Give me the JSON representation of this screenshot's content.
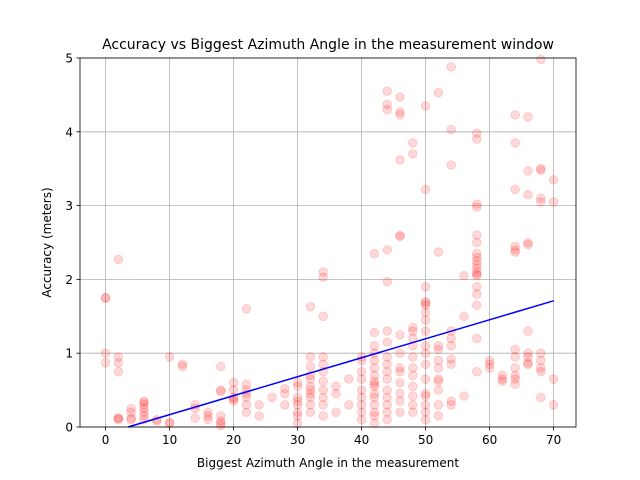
{
  "chart_data": {
    "type": "scatter",
    "title": "Accuracy vs Biggest Azimuth Angle in the measurement window",
    "xlabel": "Biggest Azimuth Angle in the measurement",
    "ylabel": "Accuracy (meters)",
    "xlim": [
      -4,
      73.5
    ],
    "ylim": [
      0,
      5
    ],
    "xticks": [
      0,
      10,
      20,
      30,
      40,
      50,
      60,
      70
    ],
    "yticks": [
      0,
      1,
      2,
      3,
      4,
      5
    ],
    "grid": true,
    "colors": {
      "points": "#ff0000",
      "fit_line": "#0000ff",
      "grid": "#b0b0b0",
      "axes": "#000000"
    },
    "series": [
      {
        "type": "scatter",
        "points": [
          [
            0,
            1.75
          ],
          [
            0,
            1.75
          ],
          [
            0,
            1.0
          ],
          [
            0,
            0.87
          ],
          [
            2,
            2.27
          ],
          [
            2,
            0.95
          ],
          [
            2,
            0.87
          ],
          [
            2,
            0.75
          ],
          [
            2,
            0.12
          ],
          [
            2,
            0.1
          ],
          [
            2,
            0.12
          ],
          [
            4,
            0.25
          ],
          [
            4,
            0.2
          ],
          [
            4,
            0.12
          ],
          [
            4,
            0.1
          ],
          [
            6,
            0.35
          ],
          [
            6,
            0.3
          ],
          [
            6,
            0.33
          ],
          [
            6,
            0.25
          ],
          [
            6,
            0.2
          ],
          [
            6,
            0.15
          ],
          [
            6,
            0.1
          ],
          [
            8,
            0.1
          ],
          [
            8,
            0.08
          ],
          [
            10,
            0.95
          ],
          [
            10,
            0.06
          ],
          [
            10,
            0.05
          ],
          [
            12,
            0.85
          ],
          [
            12,
            0.82
          ],
          [
            14,
            0.3
          ],
          [
            14,
            0.25
          ],
          [
            14,
            0.12
          ],
          [
            16,
            0.2
          ],
          [
            16,
            0.15
          ],
          [
            16,
            0.1
          ],
          [
            18,
            0.82
          ],
          [
            18,
            0.5
          ],
          [
            18,
            0.48
          ],
          [
            18,
            0.15
          ],
          [
            18,
            0.08
          ],
          [
            18,
            0.05
          ],
          [
            18,
            0.02
          ],
          [
            20,
            0.6
          ],
          [
            20,
            0.5
          ],
          [
            20,
            0.4
          ],
          [
            20,
            0.38
          ],
          [
            20,
            0.35
          ],
          [
            22,
            1.6
          ],
          [
            22,
            0.58
          ],
          [
            22,
            0.5
          ],
          [
            22,
            0.45
          ],
          [
            22,
            0.4
          ],
          [
            22,
            0.3
          ],
          [
            22,
            0.2
          ],
          [
            24,
            0.3
          ],
          [
            24,
            0.15
          ],
          [
            26,
            0.4
          ],
          [
            28,
            0.52
          ],
          [
            28,
            0.45
          ],
          [
            28,
            0.3
          ],
          [
            30,
            0.6
          ],
          [
            30,
            0.55
          ],
          [
            30,
            0.4
          ],
          [
            30,
            0.35
          ],
          [
            30,
            0.3
          ],
          [
            30,
            0.2
          ],
          [
            30,
            0.15
          ],
          [
            30,
            0.05
          ],
          [
            32,
            1.63
          ],
          [
            32,
            0.95
          ],
          [
            32,
            0.82
          ],
          [
            32,
            0.7
          ],
          [
            32,
            0.65
          ],
          [
            32,
            0.55
          ],
          [
            32,
            0.5
          ],
          [
            32,
            0.45
          ],
          [
            32,
            0.4
          ],
          [
            32,
            0.3
          ],
          [
            32,
            0.2
          ],
          [
            34,
            2.1
          ],
          [
            34,
            2.03
          ],
          [
            34,
            1.5
          ],
          [
            34,
            0.95
          ],
          [
            34,
            0.85
          ],
          [
            34,
            0.75
          ],
          [
            34,
            0.62
          ],
          [
            34,
            0.5
          ],
          [
            34,
            0.4
          ],
          [
            34,
            0.3
          ],
          [
            34,
            0.15
          ],
          [
            36,
            0.55
          ],
          [
            36,
            0.45
          ],
          [
            36,
            0.2
          ],
          [
            38,
            0.65
          ],
          [
            38,
            0.3
          ],
          [
            40,
            0.95
          ],
          [
            40,
            0.9
          ],
          [
            40,
            0.75
          ],
          [
            40,
            0.65
          ],
          [
            40,
            0.5
          ],
          [
            40,
            0.4
          ],
          [
            40,
            0.3
          ],
          [
            40,
            0.2
          ],
          [
            40,
            0.1
          ],
          [
            42,
            2.35
          ],
          [
            42,
            1.28
          ],
          [
            42,
            1.1
          ],
          [
            42,
            1.0
          ],
          [
            42,
            0.9
          ],
          [
            42,
            0.8
          ],
          [
            42,
            0.7
          ],
          [
            42,
            0.62
          ],
          [
            42,
            0.58
          ],
          [
            42,
            0.55
          ],
          [
            42,
            0.45
          ],
          [
            42,
            0.4
          ],
          [
            42,
            0.3
          ],
          [
            42,
            0.2
          ],
          [
            42,
            0.15
          ],
          [
            42,
            0.05
          ],
          [
            44,
            4.55
          ],
          [
            44,
            4.37
          ],
          [
            44,
            4.3
          ],
          [
            44,
            2.4
          ],
          [
            44,
            1.97
          ],
          [
            44,
            1.3
          ],
          [
            44,
            1.15
          ],
          [
            44,
            0.95
          ],
          [
            44,
            0.85
          ],
          [
            44,
            0.75
          ],
          [
            44,
            0.65
          ],
          [
            44,
            0.5
          ],
          [
            44,
            0.4
          ],
          [
            44,
            0.3
          ],
          [
            44,
            0.2
          ],
          [
            44,
            0.1
          ],
          [
            46,
            4.47
          ],
          [
            46,
            4.27
          ],
          [
            46,
            4.23
          ],
          [
            46,
            3.62
          ],
          [
            46,
            2.6
          ],
          [
            46,
            2.58
          ],
          [
            46,
            1.25
          ],
          [
            46,
            1.0
          ],
          [
            46,
            0.8
          ],
          [
            46,
            0.75
          ],
          [
            46,
            0.6
          ],
          [
            46,
            0.45
          ],
          [
            46,
            0.35
          ],
          [
            46,
            0.2
          ],
          [
            48,
            3.85
          ],
          [
            48,
            3.7
          ],
          [
            48,
            1.35
          ],
          [
            48,
            1.3
          ],
          [
            48,
            1.2
          ],
          [
            48,
            1.1
          ],
          [
            48,
            0.95
          ],
          [
            48,
            0.8
          ],
          [
            48,
            0.7
          ],
          [
            48,
            0.55
          ],
          [
            48,
            0.42
          ],
          [
            48,
            0.3
          ],
          [
            48,
            0.2
          ],
          [
            50,
            4.35
          ],
          [
            50,
            3.22
          ],
          [
            50,
            1.9
          ],
          [
            50,
            1.7
          ],
          [
            50,
            1.68
          ],
          [
            50,
            1.65
          ],
          [
            50,
            1.55
          ],
          [
            50,
            1.45
          ],
          [
            50,
            1.3
          ],
          [
            50,
            1.1
          ],
          [
            50,
            1.0
          ],
          [
            50,
            0.85
          ],
          [
            50,
            0.65
          ],
          [
            50,
            0.45
          ],
          [
            50,
            0.42
          ],
          [
            50,
            0.3
          ],
          [
            50,
            0.2
          ],
          [
            50,
            0.1
          ],
          [
            52,
            4.53
          ],
          [
            52,
            2.37
          ],
          [
            52,
            1.1
          ],
          [
            52,
            1.05
          ],
          [
            52,
            0.9
          ],
          [
            52,
            0.8
          ],
          [
            52,
            0.65
          ],
          [
            52,
            0.62
          ],
          [
            52,
            0.5
          ],
          [
            52,
            0.3
          ],
          [
            52,
            0.15
          ],
          [
            54,
            4.88
          ],
          [
            54,
            4.03
          ],
          [
            54,
            3.55
          ],
          [
            54,
            1.3
          ],
          [
            54,
            1.2
          ],
          [
            54,
            1.1
          ],
          [
            54,
            0.92
          ],
          [
            54,
            0.85
          ],
          [
            54,
            0.35
          ],
          [
            54,
            0.3
          ],
          [
            56,
            2.05
          ],
          [
            56,
            1.5
          ],
          [
            56,
            0.42
          ],
          [
            58,
            3.98
          ],
          [
            58,
            3.9
          ],
          [
            58,
            3.02
          ],
          [
            58,
            2.98
          ],
          [
            58,
            2.6
          ],
          [
            58,
            2.5
          ],
          [
            58,
            2.35
          ],
          [
            58,
            2.3
          ],
          [
            58,
            2.25
          ],
          [
            58,
            2.2
          ],
          [
            58,
            2.15
          ],
          [
            58,
            2.1
          ],
          [
            58,
            2.07
          ],
          [
            58,
            2.05
          ],
          [
            58,
            1.9
          ],
          [
            58,
            1.8
          ],
          [
            58,
            1.65
          ],
          [
            58,
            1.2
          ],
          [
            58,
            0.75
          ],
          [
            60,
            0.9
          ],
          [
            60,
            0.85
          ],
          [
            60,
            0.8
          ],
          [
            62,
            0.7
          ],
          [
            62,
            0.65
          ],
          [
            62,
            0.62
          ],
          [
            64,
            4.23
          ],
          [
            64,
            3.85
          ],
          [
            64,
            3.22
          ],
          [
            64,
            2.45
          ],
          [
            64,
            2.4
          ],
          [
            64,
            2.37
          ],
          [
            64,
            1.05
          ],
          [
            64,
            0.95
          ],
          [
            64,
            0.8
          ],
          [
            64,
            0.7
          ],
          [
            64,
            0.65
          ],
          [
            64,
            0.58
          ],
          [
            66,
            4.2
          ],
          [
            66,
            3.47
          ],
          [
            66,
            3.15
          ],
          [
            66,
            2.5
          ],
          [
            66,
            2.47
          ],
          [
            66,
            1.3
          ],
          [
            66,
            1.0
          ],
          [
            66,
            0.95
          ],
          [
            66,
            0.87
          ],
          [
            66,
            0.85
          ],
          [
            68,
            4.98
          ],
          [
            68,
            3.5
          ],
          [
            68,
            3.48
          ],
          [
            68,
            3.1
          ],
          [
            68,
            3.05
          ],
          [
            68,
            1.0
          ],
          [
            68,
            0.9
          ],
          [
            68,
            0.8
          ],
          [
            68,
            0.75
          ],
          [
            68,
            0.4
          ],
          [
            70,
            3.35
          ],
          [
            70,
            3.05
          ],
          [
            70,
            0.65
          ],
          [
            70,
            0.3
          ]
        ]
      },
      {
        "type": "line",
        "points": [
          [
            3.5,
            0.0
          ],
          [
            70,
            1.71
          ]
        ]
      }
    ]
  }
}
